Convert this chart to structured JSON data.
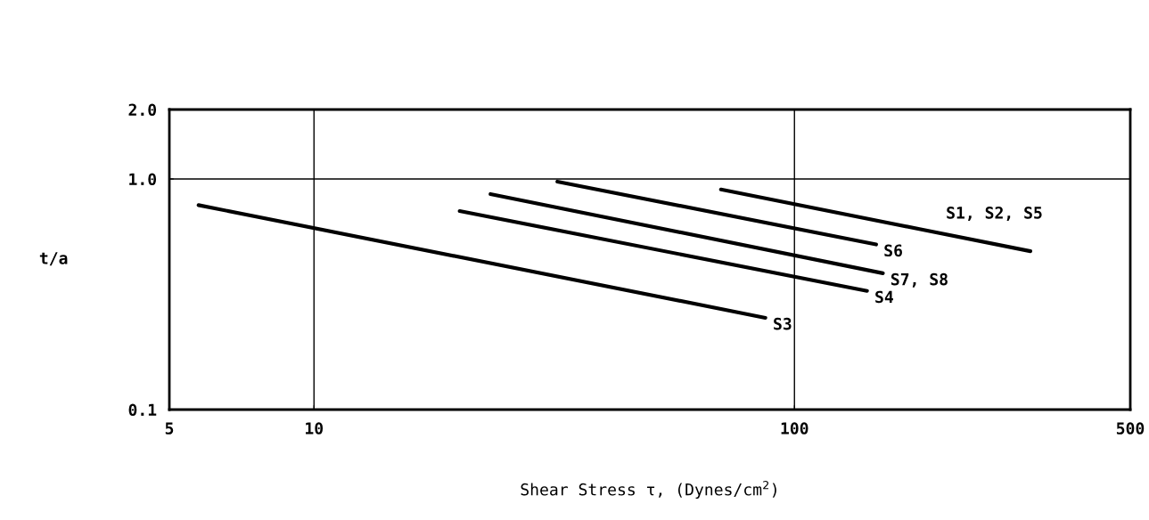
{
  "chart_data": {
    "type": "line",
    "xlabel": "Shear Stress τ, (Dynes/cm$^{2}$)",
    "ylabel": "t/a",
    "log": "xy",
    "grid": true,
    "xlim": [
      5,
      500
    ],
    "ylim": [
      0.1,
      2.0
    ],
    "xticks": [
      5,
      10,
      100,
      500
    ],
    "yticks": [
      {
        "value": 0.1,
        "label": "0.1"
      },
      {
        "value": 1.0,
        "label": "1.0"
      },
      {
        "value": 2.0,
        "label": "2.0"
      }
    ],
    "series": [
      {
        "color": "#000000",
        "x": [
          5.75,
          87
        ],
        "values": [
          0.77,
          0.25
        ]
      },
      {
        "color": "#000000",
        "x": [
          20.1,
          141.6
        ],
        "values": [
          0.726,
          0.327
        ]
      },
      {
        "color": "#000000",
        "x": [
          23.3,
          152.8
        ],
        "values": [
          0.86,
          0.39
        ]
      },
      {
        "color": "#000000",
        "x": [
          32.1,
          147.9
        ],
        "values": [
          0.974,
          0.52
        ]
      },
      {
        "color": "#000000",
        "x": [
          70.3,
          309.8
        ],
        "values": [
          0.9,
          0.486
        ]
      }
    ],
    "annotations": [
      {
        "text": "S3",
        "x": 87,
        "y": 0.25
      },
      {
        "text": "S4",
        "x": 141.6,
        "y": 0.327
      },
      {
        "text": "S7, S8",
        "x": 152.8,
        "y": 0.39
      },
      {
        "text": "S6",
        "x": 147.9,
        "y": 0.52
      },
      {
        "text": "S1, S2, S5",
        "x": 309.8,
        "y": 0.486
      }
    ]
  }
}
